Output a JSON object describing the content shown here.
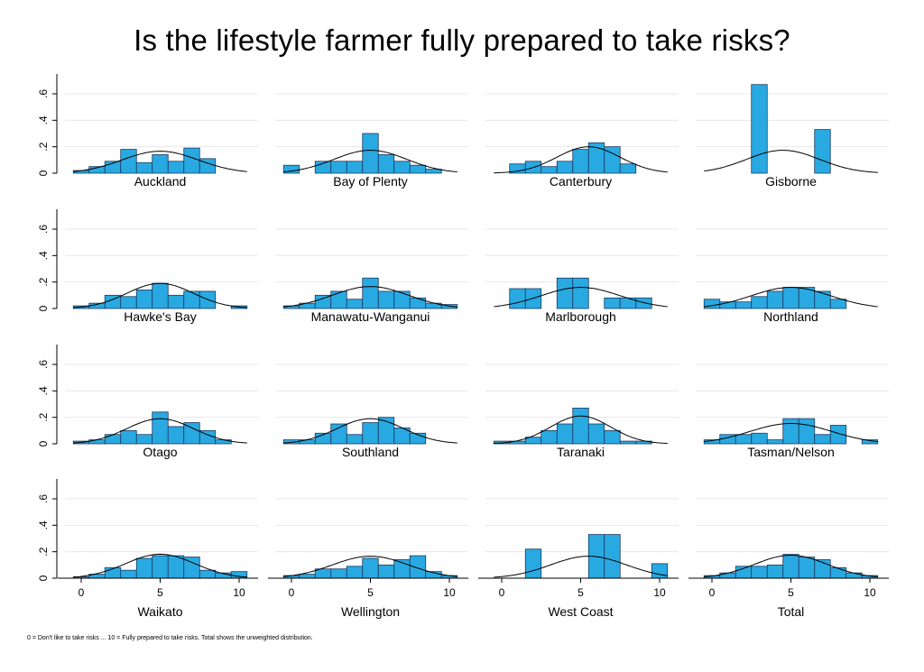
{
  "chart_data": {
    "type": "bar",
    "title": "Is the lifestyle farmer fully prepared to take risks?",
    "note": "0 = Don't like to take risks ... 10 = Fully prepared to take risks. Total shows the unweighted distribution.",
    "xlim": [
      -1,
      11
    ],
    "ylim": [
      0,
      0.75
    ],
    "x_ticks": [
      0,
      5,
      10
    ],
    "x_tick_labels": [
      "0",
      "5",
      "10"
    ],
    "y_ticks": [
      0,
      0.2,
      0.4,
      0.6
    ],
    "y_tick_labels": [
      "0",
      ".2",
      ".4",
      ".6"
    ],
    "grid": true,
    "colors": {
      "bar": "#29a9e1",
      "bar_edge": "#1a3a60",
      "curve": "#000000",
      "grid": "#e8e8e8"
    },
    "panels": [
      {
        "name": "Auckland",
        "mean": 5.0,
        "sd": 2.4,
        "bars": [
          [
            0,
            0.02
          ],
          [
            1,
            0.05
          ],
          [
            2,
            0.09
          ],
          [
            3,
            0.18
          ],
          [
            4,
            0.08
          ],
          [
            5,
            0.14
          ],
          [
            6,
            0.09
          ],
          [
            7,
            0.19
          ],
          [
            8,
            0.11
          ]
        ]
      },
      {
        "name": "Bay of Plenty",
        "mean": 5.0,
        "sd": 2.3,
        "bars": [
          [
            0,
            0.06
          ],
          [
            2,
            0.09
          ],
          [
            3,
            0.09
          ],
          [
            4,
            0.09
          ],
          [
            5,
            0.3
          ],
          [
            6,
            0.14
          ],
          [
            7,
            0.09
          ],
          [
            8,
            0.06
          ],
          [
            9,
            0.03
          ]
        ]
      },
      {
        "name": "Canterbury",
        "mean": 5.5,
        "sd": 2.0,
        "bars": [
          [
            1,
            0.07
          ],
          [
            2,
            0.09
          ],
          [
            3,
            0.05
          ],
          [
            4,
            0.09
          ],
          [
            5,
            0.18
          ],
          [
            6,
            0.23
          ],
          [
            7,
            0.2
          ],
          [
            8,
            0.07
          ]
        ]
      },
      {
        "name": "Gisborne",
        "mean": 4.5,
        "sd": 2.3,
        "bars": [
          [
            3,
            0.67
          ],
          [
            7,
            0.33
          ]
        ]
      },
      {
        "name": "Hawke's Bay",
        "mean": 5.0,
        "sd": 2.1,
        "bars": [
          [
            0,
            0.02
          ],
          [
            1,
            0.04
          ],
          [
            2,
            0.1
          ],
          [
            3,
            0.09
          ],
          [
            4,
            0.14
          ],
          [
            5,
            0.19
          ],
          [
            6,
            0.1
          ],
          [
            7,
            0.13
          ],
          [
            8,
            0.13
          ],
          [
            10,
            0.02
          ]
        ]
      },
      {
        "name": "Manawatu-Wanganui",
        "mean": 5.0,
        "sd": 2.4,
        "bars": [
          [
            0,
            0.02
          ],
          [
            1,
            0.04
          ],
          [
            2,
            0.1
          ],
          [
            3,
            0.13
          ],
          [
            4,
            0.07
          ],
          [
            5,
            0.23
          ],
          [
            6,
            0.13
          ],
          [
            7,
            0.13
          ],
          [
            8,
            0.08
          ],
          [
            9,
            0.04
          ],
          [
            10,
            0.03
          ]
        ]
      },
      {
        "name": "Marlborough",
        "mean": 5.0,
        "sd": 2.5,
        "bars": [
          [
            1,
            0.15
          ],
          [
            2,
            0.15
          ],
          [
            4,
            0.23
          ],
          [
            5,
            0.23
          ],
          [
            7,
            0.08
          ],
          [
            8,
            0.08
          ],
          [
            9,
            0.08
          ]
        ]
      },
      {
        "name": "Northland",
        "mean": 5.0,
        "sd": 2.5,
        "bars": [
          [
            0,
            0.07
          ],
          [
            1,
            0.05
          ],
          [
            2,
            0.05
          ],
          [
            3,
            0.09
          ],
          [
            4,
            0.13
          ],
          [
            5,
            0.16
          ],
          [
            6,
            0.16
          ],
          [
            7,
            0.13
          ],
          [
            8,
            0.07
          ]
        ]
      },
      {
        "name": "Otago",
        "mean": 5.0,
        "sd": 2.1,
        "bars": [
          [
            0,
            0.02
          ],
          [
            1,
            0.03
          ],
          [
            2,
            0.07
          ],
          [
            3,
            0.1
          ],
          [
            4,
            0.07
          ],
          [
            5,
            0.24
          ],
          [
            6,
            0.13
          ],
          [
            7,
            0.16
          ],
          [
            8,
            0.1
          ],
          [
            9,
            0.03
          ]
        ]
      },
      {
        "name": "Southland",
        "mean": 5.0,
        "sd": 2.1,
        "bars": [
          [
            0,
            0.03
          ],
          [
            1,
            0.03
          ],
          [
            2,
            0.08
          ],
          [
            3,
            0.15
          ],
          [
            4,
            0.07
          ],
          [
            5,
            0.16
          ],
          [
            6,
            0.2
          ],
          [
            7,
            0.12
          ],
          [
            8,
            0.08
          ]
        ]
      },
      {
        "name": "Taranaki",
        "mean": 5.0,
        "sd": 1.9,
        "bars": [
          [
            0,
            0.02
          ],
          [
            1,
            0.02
          ],
          [
            2,
            0.05
          ],
          [
            3,
            0.1
          ],
          [
            4,
            0.15
          ],
          [
            5,
            0.27
          ],
          [
            6,
            0.15
          ],
          [
            7,
            0.1
          ],
          [
            8,
            0.02
          ],
          [
            9,
            0.02
          ]
        ]
      },
      {
        "name": "Tasman/Nelson",
        "mean": 5.0,
        "sd": 2.6,
        "bars": [
          [
            0,
            0.03
          ],
          [
            1,
            0.07
          ],
          [
            2,
            0.07
          ],
          [
            3,
            0.08
          ],
          [
            4,
            0.03
          ],
          [
            5,
            0.19
          ],
          [
            6,
            0.19
          ],
          [
            7,
            0.07
          ],
          [
            8,
            0.14
          ],
          [
            10,
            0.03
          ]
        ]
      },
      {
        "name": "Waikato",
        "mean": 5.0,
        "sd": 2.2,
        "bars": [
          [
            0,
            0.01
          ],
          [
            1,
            0.03
          ],
          [
            2,
            0.08
          ],
          [
            3,
            0.06
          ],
          [
            4,
            0.15
          ],
          [
            5,
            0.17
          ],
          [
            6,
            0.17
          ],
          [
            7,
            0.16
          ],
          [
            8,
            0.06
          ],
          [
            9,
            0.04
          ],
          [
            10,
            0.05
          ]
        ]
      },
      {
        "name": "Wellington",
        "mean": 5.0,
        "sd": 2.4,
        "bars": [
          [
            0,
            0.02
          ],
          [
            1,
            0.03
          ],
          [
            2,
            0.07
          ],
          [
            3,
            0.07
          ],
          [
            4,
            0.09
          ],
          [
            5,
            0.15
          ],
          [
            6,
            0.1
          ],
          [
            7,
            0.14
          ],
          [
            8,
            0.17
          ],
          [
            9,
            0.05
          ],
          [
            10,
            0.02
          ]
        ]
      },
      {
        "name": "West Coast",
        "mean": 5.5,
        "sd": 2.4,
        "bars": [
          [
            2,
            0.22
          ],
          [
            6,
            0.33
          ],
          [
            7,
            0.33
          ],
          [
            10,
            0.11
          ]
        ]
      },
      {
        "name": "Total",
        "mean": 5.0,
        "sd": 2.3,
        "bars": [
          [
            0,
            0.02
          ],
          [
            1,
            0.04
          ],
          [
            2,
            0.09
          ],
          [
            3,
            0.09
          ],
          [
            4,
            0.1
          ],
          [
            5,
            0.18
          ],
          [
            6,
            0.16
          ],
          [
            7,
            0.14
          ],
          [
            8,
            0.08
          ],
          [
            9,
            0.04
          ],
          [
            10,
            0.02
          ]
        ]
      }
    ]
  }
}
